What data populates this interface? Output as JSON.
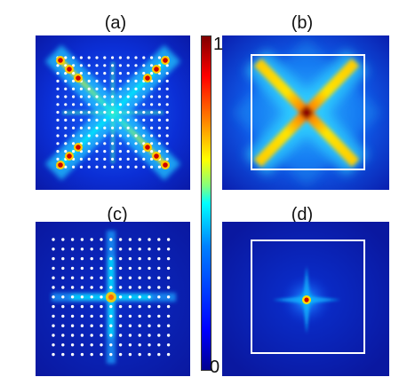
{
  "panels": [
    {
      "id": "a",
      "label": "(a)"
    },
    {
      "id": "b",
      "label": "(b)"
    },
    {
      "id": "c",
      "label": "(c)"
    },
    {
      "id": "d",
      "label": "(d)"
    }
  ],
  "colorbar": {
    "max_label": "1",
    "min_label": "0",
    "range": [
      0,
      1
    ],
    "colormap": "jet"
  },
  "colors": {
    "background_low": "#0000b4",
    "peak": "#8b0000",
    "frame": "#ffffff",
    "lattice_dot": "#ffffff"
  }
}
